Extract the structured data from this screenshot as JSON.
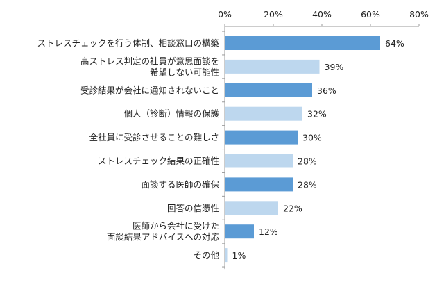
{
  "chart_data": {
    "type": "bar",
    "orientation": "horizontal",
    "categories": [
      [
        "ストレスチェックを行う体制、相談窓口の構築"
      ],
      [
        "高ストレス判定の社員が意思面談を",
        "希望しない可能性"
      ],
      [
        "受診結果が会社に通知されないこと"
      ],
      [
        "個人（診断）情報の保護"
      ],
      [
        "全社員に受診させることの難しさ"
      ],
      [
        "ストレスチェック結果の正確性"
      ],
      [
        "面談する医師の確保"
      ],
      [
        "回答の信憑性"
      ],
      [
        "医師から会社に受けた",
        "面談結果アドバイスへの対応"
      ],
      [
        "その他"
      ]
    ],
    "values": [
      64,
      39,
      36,
      32,
      30,
      28,
      28,
      22,
      12,
      1
    ],
    "value_labels": [
      "64%",
      "39%",
      "36%",
      "32%",
      "30%",
      "28%",
      "28%",
      "22%",
      "12%",
      "1%"
    ],
    "xlim": [
      0,
      80
    ],
    "ticks": [
      0,
      20,
      40,
      60,
      80
    ],
    "tick_labels": [
      "0%",
      "20%",
      "40%",
      "60%",
      "80%"
    ],
    "axis_position": "top",
    "grid": false,
    "legend": "none",
    "title": "",
    "xlabel": "",
    "ylabel": ""
  },
  "colors": {
    "dark_bar": "#5b9bd5",
    "light_bar": "#bdd7ee",
    "axis": "#9a9a9a",
    "text": "#222222"
  }
}
